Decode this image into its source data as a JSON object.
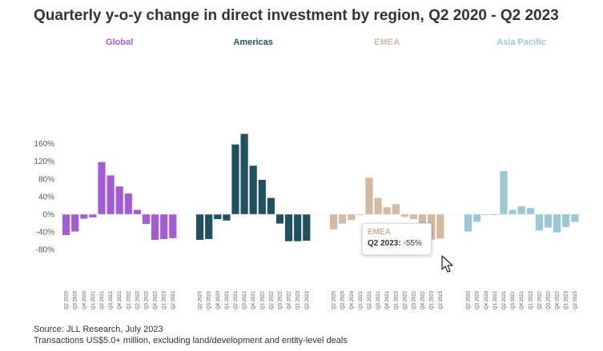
{
  "title": "Quarterly y-o-y change in direct investment by region, Q2 2020 - Q2 2023",
  "source": {
    "line1": "Source: JLL Research, July 2023",
    "line2": "Transactions US$5.0+ million, excluding land/development and entity-level deals"
  },
  "tooltip": {
    "region": "EMEA",
    "label": "Q2 2023:",
    "value": "-55%"
  },
  "chart_data": {
    "type": "bar",
    "title": "Quarterly y-o-y change in direct investment by region, Q2 2020 - Q2 2023",
    "categories": [
      "Q2 2020",
      "Q3 2020",
      "Q4 2020",
      "Q1 2021",
      "Q2 2021",
      "Q3 2021",
      "Q4 2021",
      "Q1 2022",
      "Q2 2022",
      "Q3 2022",
      "Q4 2022",
      "Q1 2023",
      "Q2 2023"
    ],
    "ylim": [
      -80,
      180
    ],
    "yticks": [
      160,
      120,
      80,
      40,
      0,
      -40,
      -80
    ],
    "ytick_labels": [
      "160%",
      "120%",
      "80%",
      "40%",
      "0%",
      "-40%",
      "-80%"
    ],
    "grid": false,
    "series": [
      {
        "name": "Global",
        "color": "#a35bd6",
        "values": [
          -47,
          -39,
          -10,
          -7,
          118,
          88,
          63,
          47,
          10,
          -22,
          -58,
          -56,
          -54
        ]
      },
      {
        "name": "Americas",
        "color": "#1f5160",
        "values": [
          -58,
          -56,
          -11,
          -14,
          158,
          182,
          110,
          78,
          37,
          -21,
          -61,
          -61,
          -60
        ]
      },
      {
        "name": "EMEA",
        "color": "#d4b9a3",
        "values": [
          -34,
          -21,
          -13,
          -2,
          83,
          37,
          16,
          23,
          -6,
          -11,
          -57,
          -57,
          -55
        ]
      },
      {
        "name": "Asia Pacific",
        "color": "#9ac8d6",
        "values": [
          -39,
          -17,
          0,
          -1,
          98,
          10,
          18,
          14,
          -37,
          -30,
          -41,
          -29,
          -17
        ]
      }
    ]
  }
}
